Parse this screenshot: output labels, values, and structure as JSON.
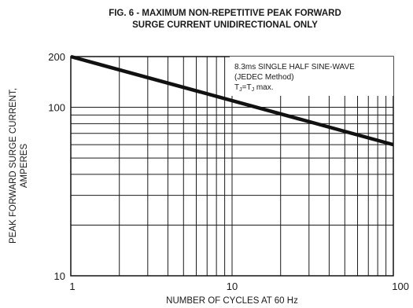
{
  "chart_data": {
    "type": "line",
    "title": [
      "FIG. 6 - MAXIMUM NON-REPETITIVE PEAK FORWARD",
      "SURGE CURRENT UNIDIRECTIONAL ONLY"
    ],
    "xlabel": "NUMBER OF CYCLES AT 60 Hz",
    "ylabel": [
      "PEAK FORWARD SURGE CURRENT,",
      "AMPERES"
    ],
    "x_scale": "log",
    "y_scale": "log",
    "xlim": [
      1,
      100
    ],
    "ylim": [
      10,
      200
    ],
    "x_ticks": [
      1,
      10,
      100
    ],
    "x_tick_labels": [
      "1",
      "10",
      "100"
    ],
    "y_ticks": [
      10,
      100,
      200
    ],
    "y_tick_labels": [
      "10",
      "100",
      "200"
    ],
    "grid": true,
    "annotation": {
      "line1": "8.3ms SINGLE HALF SINE-WAVE",
      "line2": "(JEDEC Method)",
      "line3_main": "T",
      "line3_sub1": "J",
      "line3_mid": "=T",
      "line3_sub2": "J",
      "line3_end": " max."
    },
    "series": [
      {
        "x": [
          1,
          100
        ],
        "y": [
          200,
          60
        ]
      }
    ]
  },
  "colors": {
    "line": "#111111",
    "grid": "#1a1a1a",
    "frame": "#111111"
  }
}
